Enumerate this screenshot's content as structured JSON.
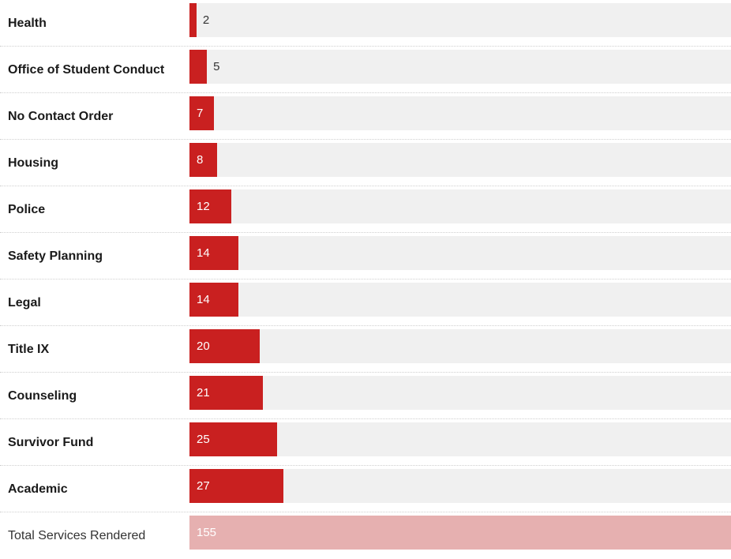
{
  "chart_data": {
    "type": "bar",
    "orientation": "horizontal",
    "categories": [
      "Health",
      "Office of Student Conduct",
      "No Contact Order",
      "Housing",
      "Police",
      "Safety Planning",
      "Legal",
      "Title IX",
      "Counseling",
      "Survivor Fund",
      "Academic"
    ],
    "values": [
      2,
      5,
      7,
      8,
      12,
      14,
      14,
      20,
      21,
      25,
      27
    ],
    "total": {
      "label": "Total Services Rendered",
      "value": 155
    },
    "xlim": [
      0,
      155
    ],
    "colors": {
      "bar": "#c92020",
      "total_bar": "#e6b0b0",
      "track": "#f0f0f0"
    }
  }
}
